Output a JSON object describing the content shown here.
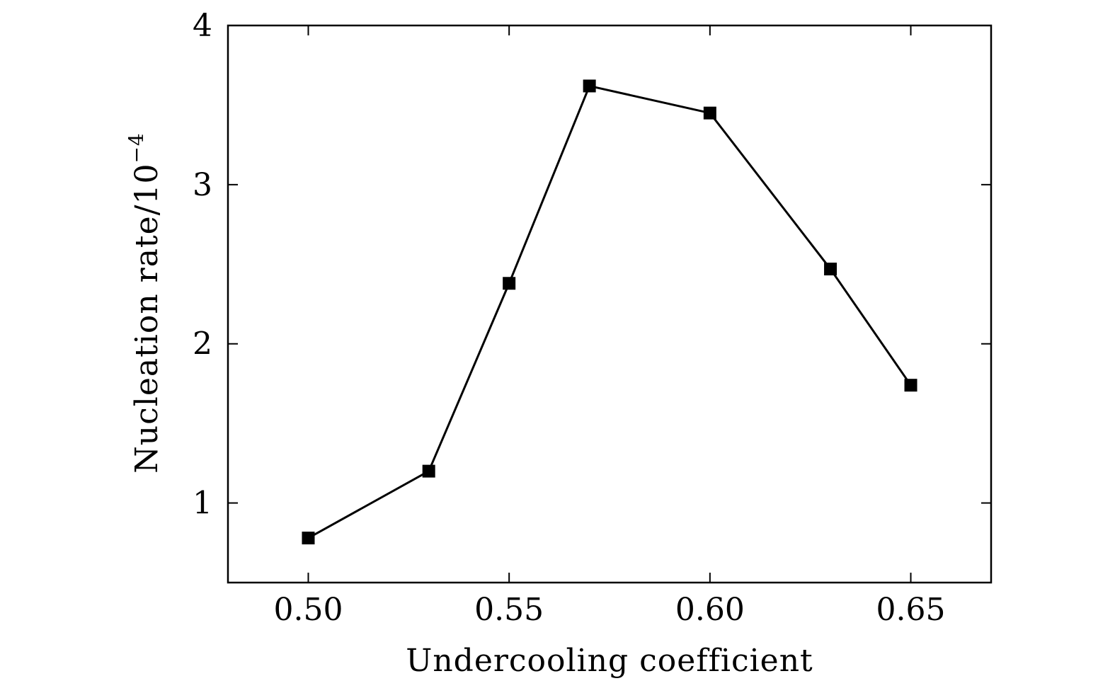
{
  "chart_data": {
    "type": "line",
    "title": "",
    "xlabel": "Undercooling coefficient",
    "ylabel_main": "Nucleation rate/10",
    "ylabel_exponent": "−4",
    "xlim": [
      0.48,
      0.67
    ],
    "ylim": [
      0.5,
      4.0
    ],
    "x_ticks": [
      0.5,
      0.55,
      0.6,
      0.65
    ],
    "x_tick_labels": [
      "0.50",
      "0.55",
      "0.60",
      "0.65"
    ],
    "y_ticks": [
      1,
      2,
      3,
      4
    ],
    "y_tick_labels": [
      "1",
      "2",
      "3",
      "4"
    ],
    "grid": false,
    "marker": "square",
    "series": [
      {
        "x": [
          0.5,
          0.53,
          0.55,
          0.57,
          0.6,
          0.63,
          0.65
        ],
        "y": [
          0.78,
          1.2,
          2.38,
          3.62,
          3.45,
          2.47,
          1.74
        ]
      }
    ],
    "colors": {
      "line": "#000000",
      "marker": "#000000",
      "frame": "#000000"
    }
  }
}
